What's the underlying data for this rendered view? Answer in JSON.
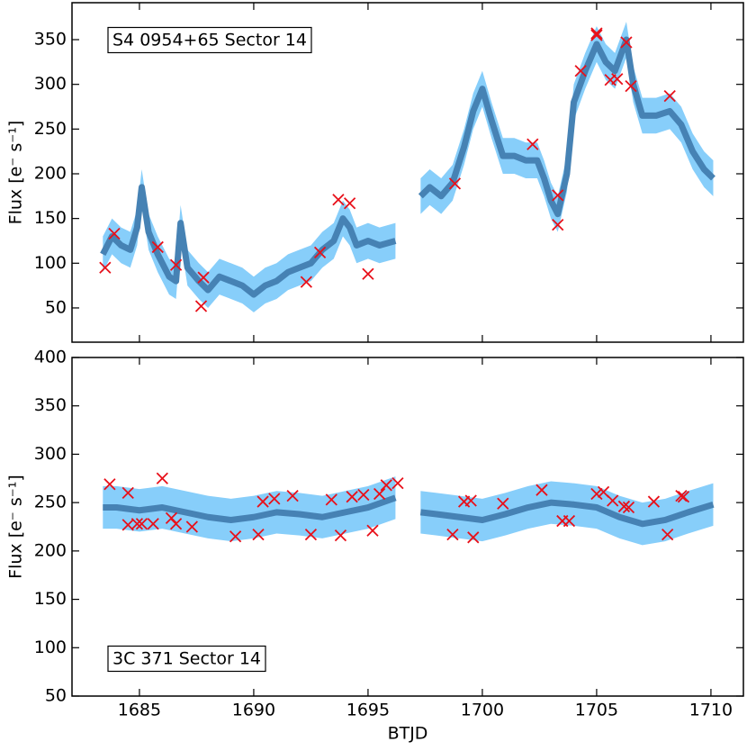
{
  "chart_data": [
    {
      "type": "line",
      "annotation": "S4 0954+65  Sector 14",
      "ylabel": "Flux [e⁻ s⁻¹]",
      "xlim": [
        1682.05,
        1711.42
      ],
      "ylim": [
        11.7,
        391.3
      ],
      "yticks": [
        50,
        100,
        150,
        200,
        250,
        300,
        350
      ],
      "color": "#4682b4",
      "band_color": "#87cefa",
      "x": [
        1683.4,
        1683.8,
        1684.2,
        1684.6,
        1684.9,
        1685.1,
        1685.4,
        1685.8,
        1686.3,
        1686.6,
        1686.8,
        1687.1,
        1687.6,
        1688.0,
        1688.5,
        1689.0,
        1689.5,
        1690.0,
        1690.5,
        1691.0,
        1691.5,
        1692.0,
        1692.5,
        1693.0,
        1693.5,
        1693.9,
        1694.2,
        1694.5,
        1695.0,
        1695.5,
        1696.2,
        1696.8,
        1697.3,
        1697.7,
        1698.2,
        1698.7,
        1699.2,
        1699.6,
        1700.0,
        1700.4,
        1700.9,
        1701.4,
        1701.9,
        1702.4,
        1702.7,
        1703.0,
        1703.3,
        1703.7,
        1704.0,
        1704.5,
        1705.0,
        1705.4,
        1705.8,
        1706.3,
        1706.6,
        1707.0,
        1707.6,
        1708.2,
        1708.7,
        1709.2,
        1709.7,
        1710.1
      ],
      "values": [
        110,
        130,
        120,
        115,
        140,
        185,
        135,
        110,
        85,
        80,
        145,
        95,
        80,
        70,
        85,
        80,
        75,
        65,
        75,
        80,
        90,
        95,
        100,
        115,
        125,
        150,
        140,
        120,
        125,
        120,
        125,
        null,
        175,
        185,
        175,
        190,
        230,
        270,
        295,
        260,
        220,
        220,
        215,
        215,
        195,
        170,
        155,
        200,
        280,
        315,
        345,
        325,
        315,
        350,
        300,
        265,
        265,
        270,
        255,
        225,
        205,
        195
      ],
      "errors": [
        20,
        20,
        20,
        20,
        20,
        20,
        20,
        20,
        20,
        20,
        20,
        20,
        20,
        20,
        20,
        20,
        20,
        20,
        20,
        20,
        20,
        20,
        20,
        20,
        20,
        20,
        20,
        20,
        20,
        20,
        20,
        null,
        20,
        20,
        20,
        20,
        20,
        20,
        20,
        20,
        20,
        20,
        20,
        20,
        20,
        20,
        20,
        20,
        20,
        20,
        20,
        20,
        20,
        20,
        20,
        20,
        20,
        20,
        20,
        20,
        20,
        20
      ],
      "points": {
        "color": "#e8101a",
        "x": [
          1683.5,
          1683.9,
          1685.8,
          1686.6,
          1687.7,
          1687.8,
          1692.3,
          1692.9,
          1693.7,
          1694.2,
          1695.0,
          1698.8,
          1702.2,
          1703.3,
          1703.3,
          1704.3,
          1705.0,
          1705.0,
          1705.6,
          1705.9,
          1706.3,
          1706.5,
          1708.2
        ],
        "values": [
          95,
          133,
          118,
          98,
          52,
          84,
          79,
          112,
          171,
          167,
          88,
          189,
          233,
          176,
          143,
          315,
          357,
          355,
          305,
          306,
          347,
          298,
          287
        ]
      }
    },
    {
      "type": "line",
      "annotation": "3C 371  Sector 14",
      "ylabel": "Flux [e⁻ s⁻¹]",
      "xlabel": "BTJD",
      "xlim": [
        1682.05,
        1711.42
      ],
      "xticks": [
        1685,
        1690,
        1695,
        1700,
        1705,
        1710
      ],
      "ylim": [
        50,
        400
      ],
      "yticks": [
        50,
        100,
        150,
        200,
        250,
        300,
        350,
        400
      ],
      "color": "#4682b4",
      "band_color": "#87cefa",
      "x": [
        1683.4,
        1684,
        1685,
        1686,
        1687,
        1688,
        1689,
        1690,
        1691,
        1692,
        1693,
        1694,
        1695,
        1696.2,
        1696.8,
        1697.3,
        1698,
        1699,
        1700,
        1701,
        1702,
        1703,
        1704,
        1705,
        1706,
        1707,
        1708,
        1709,
        1710.1
      ],
      "values": [
        245,
        245,
        242,
        245,
        240,
        235,
        232,
        235,
        240,
        238,
        235,
        240,
        245,
        255,
        null,
        240,
        238,
        235,
        232,
        238,
        245,
        250,
        248,
        245,
        235,
        228,
        232,
        240,
        248
      ],
      "errors": [
        22,
        22,
        22,
        22,
        22,
        22,
        22,
        22,
        22,
        22,
        22,
        22,
        22,
        22,
        null,
        22,
        22,
        22,
        22,
        22,
        22,
        22,
        22,
        22,
        22,
        22,
        22,
        22,
        22
      ],
      "points": {
        "color": "#e8101a",
        "x": [
          1683.7,
          1684.5,
          1684.5,
          1684.9,
          1685.1,
          1685.6,
          1686.0,
          1686.4,
          1686.6,
          1687.3,
          1689.2,
          1690.2,
          1690.4,
          1690.9,
          1691.7,
          1692.5,
          1693.4,
          1693.8,
          1694.3,
          1694.8,
          1695.2,
          1695.5,
          1695.8,
          1696.3,
          1698.7,
          1699.2,
          1699.5,
          1699.6,
          1700.9,
          1702.6,
          1703.5,
          1703.8,
          1705.0,
          1705.3,
          1705.7,
          1706.2,
          1706.4,
          1707.5,
          1708.1,
          1708.7,
          1708.8
        ],
        "values": [
          269,
          260,
          227,
          228,
          228,
          228,
          275,
          234,
          228,
          225,
          215,
          217,
          251,
          254,
          257,
          217,
          253,
          216,
          256,
          258,
          221,
          259,
          268,
          270,
          217,
          251,
          252,
          214,
          249,
          263,
          231,
          231,
          259,
          261,
          252,
          246,
          245,
          251,
          217,
          257,
          256
        ]
      }
    }
  ]
}
